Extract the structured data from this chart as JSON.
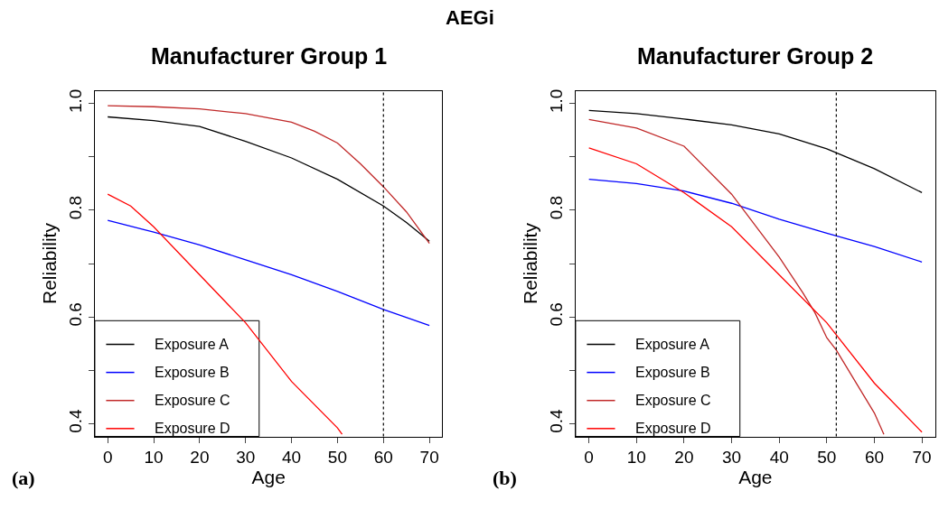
{
  "chart_data": [
    {
      "type": "line",
      "title": "Manufacturer Group 1",
      "xlabel": "Age",
      "ylabel": "Reliability",
      "annotations": [
        "AEGi",
        "(a)"
      ],
      "xlim": [
        -2.8,
        72.8
      ],
      "ylim": [
        0.376,
        1.024
      ],
      "xticks": [
        0,
        10,
        20,
        30,
        40,
        50,
        60,
        70
      ],
      "yticks": [
        0.4,
        0.6,
        0.8,
        {
          "value": 1,
          "label": "1.0"
        },
        {
          "value": 0.5,
          "label": null
        },
        {
          "value": 0.7,
          "label": null
        },
        {
          "value": 0.9,
          "label": null
        }
      ],
      "legend": "bottom left",
      "marker": "none",
      "line_style": "solid",
      "ref_lines": [
        {
          "axis": "x",
          "value": 60,
          "line_style": "dotted",
          "color": "#000000"
        }
      ],
      "series": [
        {
          "name": "Exposure A",
          "color": "#000000",
          "x": [
            0,
            10,
            20,
            30,
            40,
            50,
            60,
            65,
            70
          ],
          "values": [
            0.975,
            0.968,
            0.957,
            0.929,
            0.898,
            0.858,
            0.808,
            0.777,
            0.742
          ]
        },
        {
          "name": "Exposure B",
          "color": "#0000ff",
          "x": [
            0,
            10,
            20,
            30,
            40,
            50,
            60,
            70
          ],
          "values": [
            0.781,
            0.759,
            0.735,
            0.707,
            0.679,
            0.648,
            0.614,
            0.584
          ]
        },
        {
          "name": "Exposure C",
          "color": "#c02828",
          "x": [
            0,
            10,
            20,
            30,
            40,
            45,
            50,
            55,
            60,
            65,
            70
          ],
          "values": [
            0.996,
            0.994,
            0.99,
            0.981,
            0.965,
            0.948,
            0.926,
            0.887,
            0.844,
            0.797,
            0.738
          ]
        },
        {
          "name": "Exposure D",
          "color": "#ff0000",
          "x": [
            0,
            5,
            10,
            20,
            30,
            40,
            50,
            51
          ],
          "values": [
            0.83,
            0.808,
            0.769,
            0.679,
            0.589,
            0.479,
            0.392,
            0.38
          ]
        }
      ]
    },
    {
      "type": "line",
      "title": "Manufacturer Group 2",
      "xlabel": "Age",
      "ylabel": "Reliability",
      "annotations": [
        "(b)"
      ],
      "xlim": [
        -2.8,
        72.8
      ],
      "ylim": [
        0.376,
        1.024
      ],
      "xticks": [
        0,
        10,
        20,
        30,
        40,
        50,
        60,
        70
      ],
      "yticks": [
        0.4,
        0.6,
        0.8,
        {
          "value": 1,
          "label": "1.0"
        },
        {
          "value": 0.5,
          "label": null
        },
        {
          "value": 0.7,
          "label": null
        },
        {
          "value": 0.9,
          "label": null
        }
      ],
      "legend": "bottom left",
      "marker": "none",
      "line_style": "solid",
      "ref_lines": [
        {
          "axis": "x",
          "value": 52,
          "line_style": "dotted",
          "color": "#000000"
        }
      ],
      "series": [
        {
          "name": "Exposure A",
          "color": "#000000",
          "x": [
            0,
            10,
            20,
            30,
            40,
            50,
            60,
            70
          ],
          "values": [
            0.987,
            0.981,
            0.971,
            0.96,
            0.943,
            0.915,
            0.878,
            0.833
          ]
        },
        {
          "name": "Exposure B",
          "color": "#0000ff",
          "x": [
            0,
            10,
            20,
            30,
            40,
            50,
            60,
            70
          ],
          "values": [
            0.858,
            0.85,
            0.836,
            0.813,
            0.783,
            0.757,
            0.732,
            0.703
          ]
        },
        {
          "name": "Exposure C",
          "color": "#c02828",
          "x": [
            0,
            10,
            20,
            30,
            40,
            45,
            47.5,
            50,
            52,
            60,
            62
          ],
          "values": [
            0.97,
            0.954,
            0.92,
            0.83,
            0.712,
            0.645,
            0.608,
            0.561,
            0.538,
            0.42,
            0.38
          ]
        },
        {
          "name": "Exposure D",
          "color": "#ff0000",
          "x": [
            0,
            10,
            20,
            30,
            40,
            50,
            60,
            70
          ],
          "values": [
            0.917,
            0.887,
            0.833,
            0.769,
            0.679,
            0.589,
            0.476,
            0.384
          ]
        }
      ]
    }
  ]
}
